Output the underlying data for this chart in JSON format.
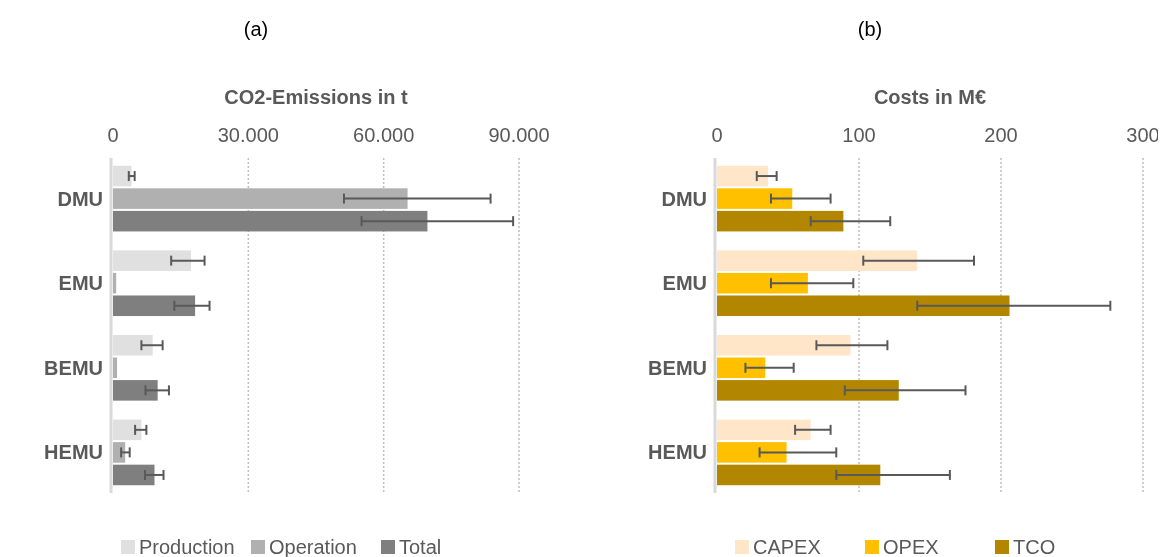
{
  "chart_data": [
    {
      "type": "bar",
      "orientation": "horizontal",
      "title": "(a)",
      "xlabel": "CO2-Emissions in t",
      "categories": [
        "DMU",
        "EMU",
        "BEMU",
        "HEMU"
      ],
      "xlim": [
        0,
        90000
      ],
      "xticks": [
        0,
        {
          "value": 30000,
          "label": "30.000"
        },
        {
          "value": 60000,
          "label": "60.000"
        },
        {
          "value": 90000,
          "label": "90.000"
        }
      ],
      "grid": "x",
      "legend": "bottom",
      "series": [
        {
          "name": "Production",
          "color": "#e0e0e0",
          "values": [
            4100,
            17300,
            8800,
            6300
          ],
          "errors": [
            [
              3500,
              4800
            ],
            [
              12900,
              20300
            ],
            [
              6300,
              11000
            ],
            [
              4900,
              7400
            ]
          ]
        },
        {
          "name": "Operation",
          "color": "#b0b0b0",
          "values": [
            65300,
            700,
            900,
            2700
          ],
          "errors": [
            [
              51200,
              83700
            ],
            null,
            null,
            [
              1800,
              3700
            ]
          ]
        },
        {
          "name": "Total",
          "color": "#7f7f7f",
          "values": [
            69700,
            18200,
            9900,
            9200
          ],
          "errors": [
            [
              55100,
              88700
            ],
            [
              13600,
              21400
            ],
            [
              7200,
              12400
            ],
            [
              7100,
              11200
            ]
          ]
        }
      ]
    },
    {
      "type": "bar",
      "orientation": "horizontal",
      "title": "(b)",
      "xlabel": "Costs in M€",
      "categories": [
        "DMU",
        "EMU",
        "BEMU",
        "HEMU"
      ],
      "xlim": [
        0,
        300
      ],
      "xticks": [
        0,
        100,
        200,
        300
      ],
      "grid": "x",
      "legend": "bottom",
      "series": [
        {
          "name": "CAPEX",
          "color": "#ffe6c8",
          "values": [
            36,
            141,
            94,
            66
          ],
          "errors": [
            [
              28,
              42
            ],
            [
              103,
              181
            ],
            [
              70,
              120
            ],
            [
              55,
              80
            ]
          ]
        },
        {
          "name": "OPEX",
          "color": "#ffc000",
          "values": [
            53,
            64,
            34,
            49
          ],
          "errors": [
            [
              38,
              80
            ],
            [
              38,
              96
            ],
            [
              20,
              54
            ],
            [
              30,
              84
            ]
          ]
        },
        {
          "name": "TCO",
          "color": "#b38600",
          "values": [
            89,
            206,
            128,
            115
          ],
          "errors": [
            [
              66,
              122
            ],
            [
              141,
              277
            ],
            [
              90,
              175
            ],
            [
              84,
              164
            ]
          ]
        }
      ]
    }
  ]
}
